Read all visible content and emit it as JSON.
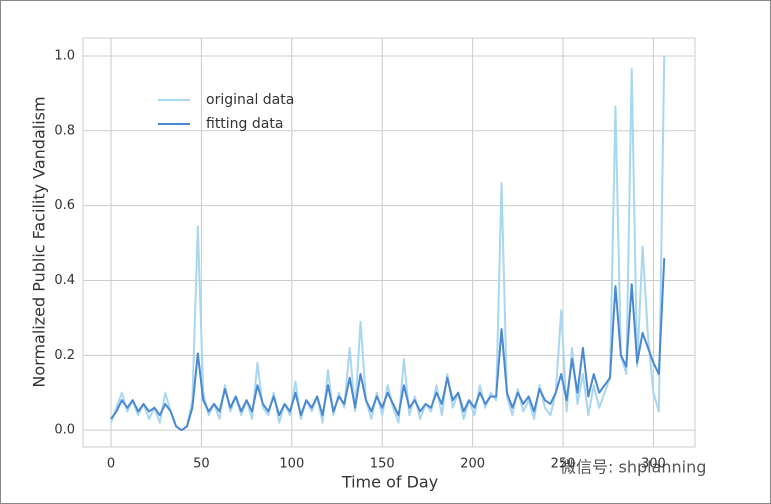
{
  "chart_data": {
    "type": "line",
    "xlabel": "Time of Day",
    "ylabel": "Normalized Public  Facility Vandalism",
    "watermark": "微信号: shplanning",
    "x": [
      0,
      3,
      6,
      9,
      12,
      15,
      18,
      21,
      24,
      27,
      30,
      33,
      36,
      39,
      42,
      45,
      48,
      51,
      54,
      57,
      60,
      63,
      66,
      69,
      72,
      75,
      78,
      81,
      84,
      87,
      90,
      93,
      96,
      99,
      102,
      105,
      108,
      111,
      114,
      117,
      120,
      123,
      126,
      129,
      132,
      135,
      138,
      141,
      144,
      147,
      150,
      153,
      156,
      159,
      162,
      165,
      168,
      171,
      174,
      177,
      180,
      183,
      186,
      189,
      192,
      195,
      198,
      201,
      204,
      207,
      210,
      213,
      216,
      219,
      222,
      225,
      228,
      231,
      234,
      237,
      240,
      243,
      246,
      249,
      252,
      255,
      258,
      261,
      264,
      267,
      270,
      273,
      276,
      279,
      282,
      285,
      288,
      291,
      294,
      297,
      300,
      303,
      306
    ],
    "series": [
      {
        "name": "original data",
        "color": "#a9d6f0",
        "width": 2,
        "values": [
          0.02,
          0.06,
          0.1,
          0.05,
          0.08,
          0.04,
          0.07,
          0.03,
          0.06,
          0.02,
          0.1,
          0.05,
          0.01,
          0.0,
          0.01,
          0.08,
          0.545,
          0.1,
          0.04,
          0.07,
          0.03,
          0.12,
          0.05,
          0.09,
          0.04,
          0.08,
          0.03,
          0.18,
          0.06,
          0.04,
          0.1,
          0.02,
          0.07,
          0.04,
          0.13,
          0.03,
          0.08,
          0.05,
          0.09,
          0.02,
          0.16,
          0.04,
          0.1,
          0.06,
          0.22,
          0.05,
          0.29,
          0.08,
          0.03,
          0.1,
          0.04,
          0.12,
          0.06,
          0.02,
          0.19,
          0.04,
          0.09,
          0.03,
          0.07,
          0.05,
          0.12,
          0.04,
          0.15,
          0.06,
          0.1,
          0.03,
          0.08,
          0.04,
          0.12,
          0.06,
          0.1,
          0.08,
          0.66,
          0.09,
          0.04,
          0.11,
          0.05,
          0.08,
          0.03,
          0.12,
          0.06,
          0.04,
          0.1,
          0.32,
          0.05,
          0.22,
          0.07,
          0.15,
          0.04,
          0.12,
          0.06,
          0.1,
          0.14,
          0.865,
          0.2,
          0.15,
          0.965,
          0.17,
          0.49,
          0.25,
          0.1,
          0.05,
          1.0
        ]
      },
      {
        "name": "fitting data",
        "color": "#4a88d2",
        "width": 2,
        "values": [
          0.03,
          0.05,
          0.08,
          0.06,
          0.08,
          0.05,
          0.07,
          0.05,
          0.06,
          0.04,
          0.07,
          0.05,
          0.01,
          0.0,
          0.01,
          0.06,
          0.205,
          0.08,
          0.05,
          0.07,
          0.05,
          0.11,
          0.06,
          0.09,
          0.05,
          0.08,
          0.05,
          0.12,
          0.07,
          0.05,
          0.09,
          0.04,
          0.07,
          0.05,
          0.1,
          0.04,
          0.08,
          0.06,
          0.09,
          0.04,
          0.12,
          0.05,
          0.09,
          0.07,
          0.14,
          0.06,
          0.15,
          0.08,
          0.05,
          0.09,
          0.06,
          0.1,
          0.07,
          0.04,
          0.12,
          0.06,
          0.08,
          0.05,
          0.07,
          0.06,
          0.1,
          0.07,
          0.14,
          0.08,
          0.1,
          0.05,
          0.08,
          0.06,
          0.1,
          0.07,
          0.09,
          0.09,
          0.27,
          0.1,
          0.06,
          0.1,
          0.07,
          0.09,
          0.05,
          0.11,
          0.08,
          0.07,
          0.1,
          0.15,
          0.08,
          0.19,
          0.1,
          0.22,
          0.09,
          0.15,
          0.1,
          0.12,
          0.14,
          0.385,
          0.2,
          0.17,
          0.39,
          0.18,
          0.26,
          0.22,
          0.18,
          0.15,
          0.46
        ]
      }
    ],
    "xlim": [
      -15.5,
      323
    ],
    "ylim": [
      -0.045,
      1.048
    ],
    "xticks": [
      0,
      50,
      100,
      150,
      200,
      250,
      300
    ],
    "yticks": [
      {
        "value": 0,
        "label": "0.0"
      },
      {
        "value": 0.2,
        "label": "0.2"
      },
      {
        "value": 0.4,
        "label": "0.4"
      },
      {
        "value": 0.6,
        "label": "0.6"
      },
      {
        "value": 0.8,
        "label": "0.8"
      },
      {
        "value": 1,
        "label": "1.0"
      }
    ],
    "grid": true,
    "legend": "upper left"
  }
}
